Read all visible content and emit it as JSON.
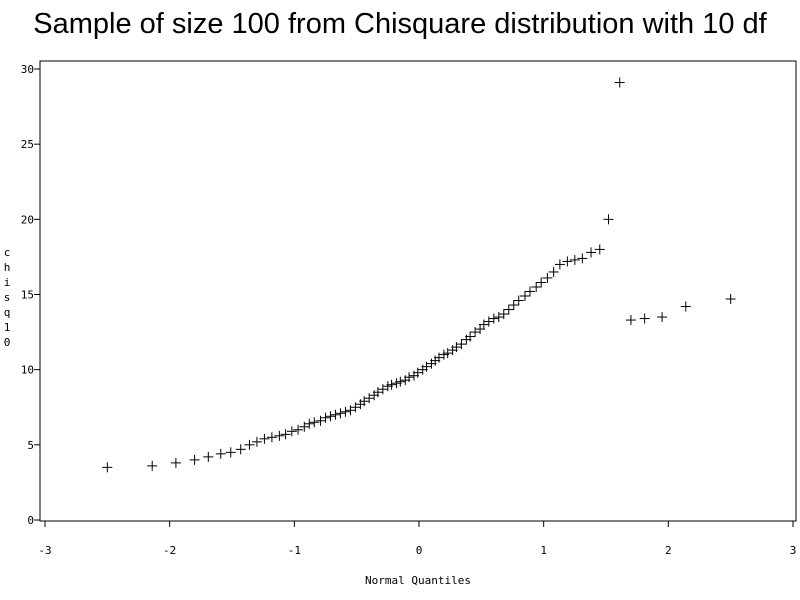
{
  "chart_data": {
    "type": "scatter",
    "title": "Sample of size 100 from Chisquare distribution with 10 df",
    "xlabel": "Normal Quantiles",
    "ylabel": "chisq10",
    "xlim": [
      -3,
      3
    ],
    "ylim": [
      0,
      30
    ],
    "x_ticks": [
      -3,
      -2,
      -1,
      0,
      1,
      2,
      3
    ],
    "y_ticks": [
      0,
      5,
      10,
      15,
      20,
      25,
      30
    ],
    "grid": false,
    "marker": "plus",
    "series": [
      {
        "x": [
          -2.5,
          -2.14,
          -1.95,
          -1.8,
          -1.69,
          -1.59,
          -1.51,
          -1.43,
          -1.36,
          -1.3,
          -1.24,
          -1.18,
          -1.12,
          -1.07,
          -1.02,
          -0.97,
          -0.92,
          -0.88,
          -0.84,
          -0.79,
          -0.75,
          -0.71,
          -0.67,
          -0.63,
          -0.59,
          -0.55,
          -0.51,
          -0.47,
          -0.44,
          -0.4,
          -0.36,
          -0.33,
          -0.29,
          -0.25,
          -0.22,
          -0.18,
          -0.15,
          -0.11,
          -0.08,
          -0.04,
          -0.01,
          0.03,
          0.06,
          0.1,
          0.13,
          0.16,
          0.2,
          0.23,
          0.27,
          0.3,
          0.34,
          0.38,
          0.41,
          0.45,
          0.49,
          0.52,
          0.56,
          0.6,
          0.64,
          0.68,
          0.72,
          0.76,
          0.8,
          0.85,
          0.89,
          0.94,
          0.98,
          1.03,
          1.08,
          1.13,
          1.19,
          1.25,
          1.31,
          1.38,
          1.45,
          1.52,
          1.61,
          1.7,
          1.81,
          1.95,
          2.14,
          2.5
        ],
        "y": [
          3.5,
          3.6,
          3.8,
          4.0,
          4.2,
          4.4,
          4.5,
          4.7,
          5.0,
          5.2,
          5.4,
          5.5,
          5.6,
          5.7,
          5.9,
          6.0,
          6.2,
          6.4,
          6.5,
          6.6,
          6.8,
          6.9,
          7.0,
          7.1,
          7.2,
          7.3,
          7.5,
          7.7,
          7.9,
          8.1,
          8.3,
          8.5,
          8.7,
          8.9,
          9.0,
          9.1,
          9.2,
          9.3,
          9.5,
          9.6,
          9.8,
          10.0,
          10.2,
          10.4,
          10.6,
          10.8,
          11.0,
          11.1,
          11.3,
          11.5,
          11.7,
          12.0,
          12.2,
          12.5,
          12.7,
          13.0,
          13.2,
          13.4,
          13.5,
          13.7,
          14.0,
          14.3,
          14.6,
          14.9,
          15.2,
          15.5,
          15.8,
          16.1,
          16.5,
          17.0,
          17.2,
          17.3,
          17.4,
          17.8,
          18.0,
          20.0,
          29.1,
          13.3,
          13.4,
          13.5,
          14.2,
          14.7
        ],
        "name": ""
      }
    ]
  }
}
